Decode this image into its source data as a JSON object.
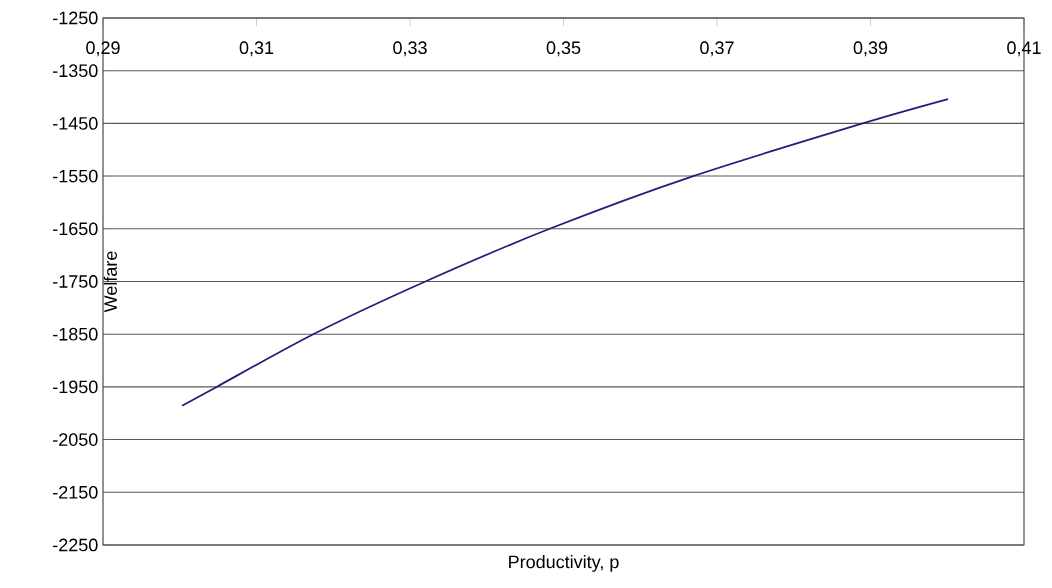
{
  "chart_data": {
    "type": "line",
    "xlabel": "Productivity, p",
    "ylabel": "Welfare",
    "x": [
      0.3003,
      0.3048,
      0.3174,
      0.332,
      0.3482,
      0.3669,
      0.389,
      0.4001
    ],
    "series": [
      {
        "color": "#1f1f7a",
        "values": [
          -1986,
          -1950,
          -1850,
          -1750,
          -1650,
          -1550,
          -1450,
          -1404
        ]
      }
    ],
    "xlim": [
      0.29,
      0.41
    ],
    "ylim": [
      -2250,
      -1250
    ],
    "xticks": [
      {
        "value": 0.29,
        "label": "0,29"
      },
      {
        "value": 0.31,
        "label": "0,31"
      },
      {
        "value": 0.33,
        "label": "0,33"
      },
      {
        "value": 0.35,
        "label": "0,35"
      },
      {
        "value": 0.37,
        "label": "0,37"
      },
      {
        "value": 0.39,
        "label": "0,39"
      },
      {
        "value": 0.41,
        "label": "0,41"
      }
    ],
    "yticks": [
      -2250,
      -2150,
      -2050,
      -1950,
      -1850,
      -1750,
      -1650,
      -1550,
      -1450,
      -1350,
      -1250
    ],
    "grid": "y",
    "marker": "none",
    "line_style": "solid"
  }
}
